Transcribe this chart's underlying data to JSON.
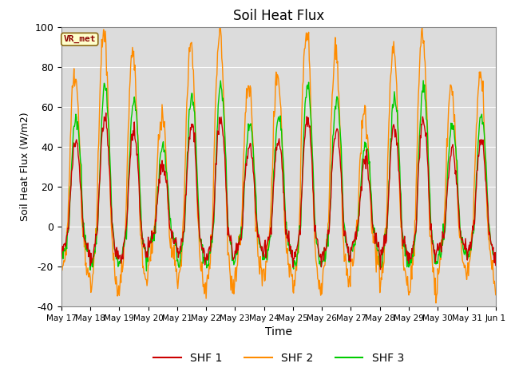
{
  "title": "Soil Heat Flux",
  "xlabel": "Time",
  "ylabel": "Soil Heat Flux (W/m2)",
  "ylim": [
    -40,
    100
  ],
  "annotation_text": "VR_met",
  "annotation_color": "#8B0000",
  "annotation_bg": "#FFFFCC",
  "annotation_border": "#8B6914",
  "shf1_color": "#CC0000",
  "shf2_color": "#FF8C00",
  "shf3_color": "#00CC00",
  "legend_labels": [
    "SHF 1",
    "SHF 2",
    "SHF 3"
  ],
  "bg_color": "#DCDCDC",
  "fig_bg": "#FFFFFF",
  "grid_color": "#FFFFFF",
  "xtick_labels": [
    "May 17",
    "May 18",
    "May 19",
    "May 20",
    "May 21",
    "May 22",
    "May 23",
    "May 24",
    "May 25",
    "May 26",
    "May 27",
    "May 28",
    "May 29",
    "May 30",
    "May 31",
    "Jun 1"
  ],
  "ytick_labels": [
    "-40",
    "-20",
    "0",
    "20",
    "40",
    "60",
    "80",
    "100"
  ],
  "ytick_positions": [
    -40,
    -20,
    0,
    20,
    40,
    60,
    80,
    100
  ],
  "n_days": 15
}
